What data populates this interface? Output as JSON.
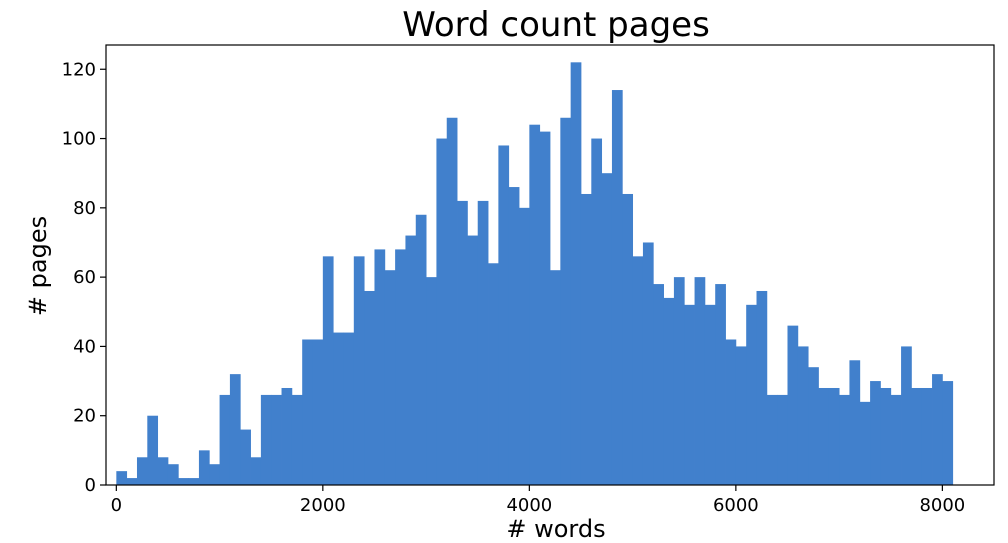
{
  "chart_data": {
    "type": "bar",
    "title": "Word count pages",
    "xlabel": "# words",
    "ylabel": "# pages",
    "xlim": [
      -100,
      8500
    ],
    "ylim": [
      0,
      127
    ],
    "xticks": [
      0,
      2000,
      4000,
      6000,
      8000
    ],
    "yticks": [
      0,
      20,
      40,
      60,
      80,
      100,
      120
    ],
    "bin_width": 100,
    "bar_color": "#4180cc",
    "grid": false,
    "bins": [
      {
        "x": 0,
        "y": 4
      },
      {
        "x": 100,
        "y": 2
      },
      {
        "x": 200,
        "y": 8
      },
      {
        "x": 300,
        "y": 20
      },
      {
        "x": 400,
        "y": 8
      },
      {
        "x": 500,
        "y": 6
      },
      {
        "x": 600,
        "y": 2
      },
      {
        "x": 700,
        "y": 2
      },
      {
        "x": 800,
        "y": 10
      },
      {
        "x": 900,
        "y": 6
      },
      {
        "x": 1000,
        "y": 26
      },
      {
        "x": 1100,
        "y": 32
      },
      {
        "x": 1200,
        "y": 16
      },
      {
        "x": 1300,
        "y": 8
      },
      {
        "x": 1400,
        "y": 26
      },
      {
        "x": 1500,
        "y": 26
      },
      {
        "x": 1600,
        "y": 28
      },
      {
        "x": 1700,
        "y": 26
      },
      {
        "x": 1800,
        "y": 42
      },
      {
        "x": 1900,
        "y": 42
      },
      {
        "x": 2000,
        "y": 66
      },
      {
        "x": 2100,
        "y": 44
      },
      {
        "x": 2200,
        "y": 44
      },
      {
        "x": 2300,
        "y": 66
      },
      {
        "x": 2400,
        "y": 56
      },
      {
        "x": 2500,
        "y": 68
      },
      {
        "x": 2600,
        "y": 62
      },
      {
        "x": 2700,
        "y": 68
      },
      {
        "x": 2800,
        "y": 72
      },
      {
        "x": 2900,
        "y": 78
      },
      {
        "x": 3000,
        "y": 60
      },
      {
        "x": 3100,
        "y": 100
      },
      {
        "x": 3200,
        "y": 106
      },
      {
        "x": 3300,
        "y": 82
      },
      {
        "x": 3400,
        "y": 72
      },
      {
        "x": 3500,
        "y": 82
      },
      {
        "x": 3600,
        "y": 64
      },
      {
        "x": 3700,
        "y": 98
      },
      {
        "x": 3800,
        "y": 86
      },
      {
        "x": 3900,
        "y": 80
      },
      {
        "x": 4000,
        "y": 104
      },
      {
        "x": 4100,
        "y": 102
      },
      {
        "x": 4200,
        "y": 62
      },
      {
        "x": 4300,
        "y": 106
      },
      {
        "x": 4400,
        "y": 122
      },
      {
        "x": 4500,
        "y": 84
      },
      {
        "x": 4600,
        "y": 100
      },
      {
        "x": 4700,
        "y": 90
      },
      {
        "x": 4800,
        "y": 114
      },
      {
        "x": 4900,
        "y": 84
      },
      {
        "x": 5000,
        "y": 66
      },
      {
        "x": 5100,
        "y": 70
      },
      {
        "x": 5200,
        "y": 58
      },
      {
        "x": 5300,
        "y": 54
      },
      {
        "x": 5400,
        "y": 60
      },
      {
        "x": 5500,
        "y": 52
      },
      {
        "x": 5600,
        "y": 60
      },
      {
        "x": 5700,
        "y": 52
      },
      {
        "x": 5800,
        "y": 58
      },
      {
        "x": 5900,
        "y": 42
      },
      {
        "x": 6000,
        "y": 40
      },
      {
        "x": 6100,
        "y": 52
      },
      {
        "x": 6200,
        "y": 56
      },
      {
        "x": 6300,
        "y": 26
      },
      {
        "x": 6400,
        "y": 26
      },
      {
        "x": 6500,
        "y": 46
      },
      {
        "x": 6600,
        "y": 40
      },
      {
        "x": 6700,
        "y": 34
      },
      {
        "x": 6800,
        "y": 28
      },
      {
        "x": 6900,
        "y": 28
      },
      {
        "x": 7000,
        "y": 26
      },
      {
        "x": 7100,
        "y": 36
      },
      {
        "x": 7200,
        "y": 24
      },
      {
        "x": 7300,
        "y": 30
      },
      {
        "x": 7400,
        "y": 28
      },
      {
        "x": 7500,
        "y": 26
      },
      {
        "x": 7600,
        "y": 40
      },
      {
        "x": 7700,
        "y": 28
      },
      {
        "x": 7800,
        "y": 28
      },
      {
        "x": 7900,
        "y": 32
      },
      {
        "x": 8000,
        "y": 30
      }
    ]
  }
}
